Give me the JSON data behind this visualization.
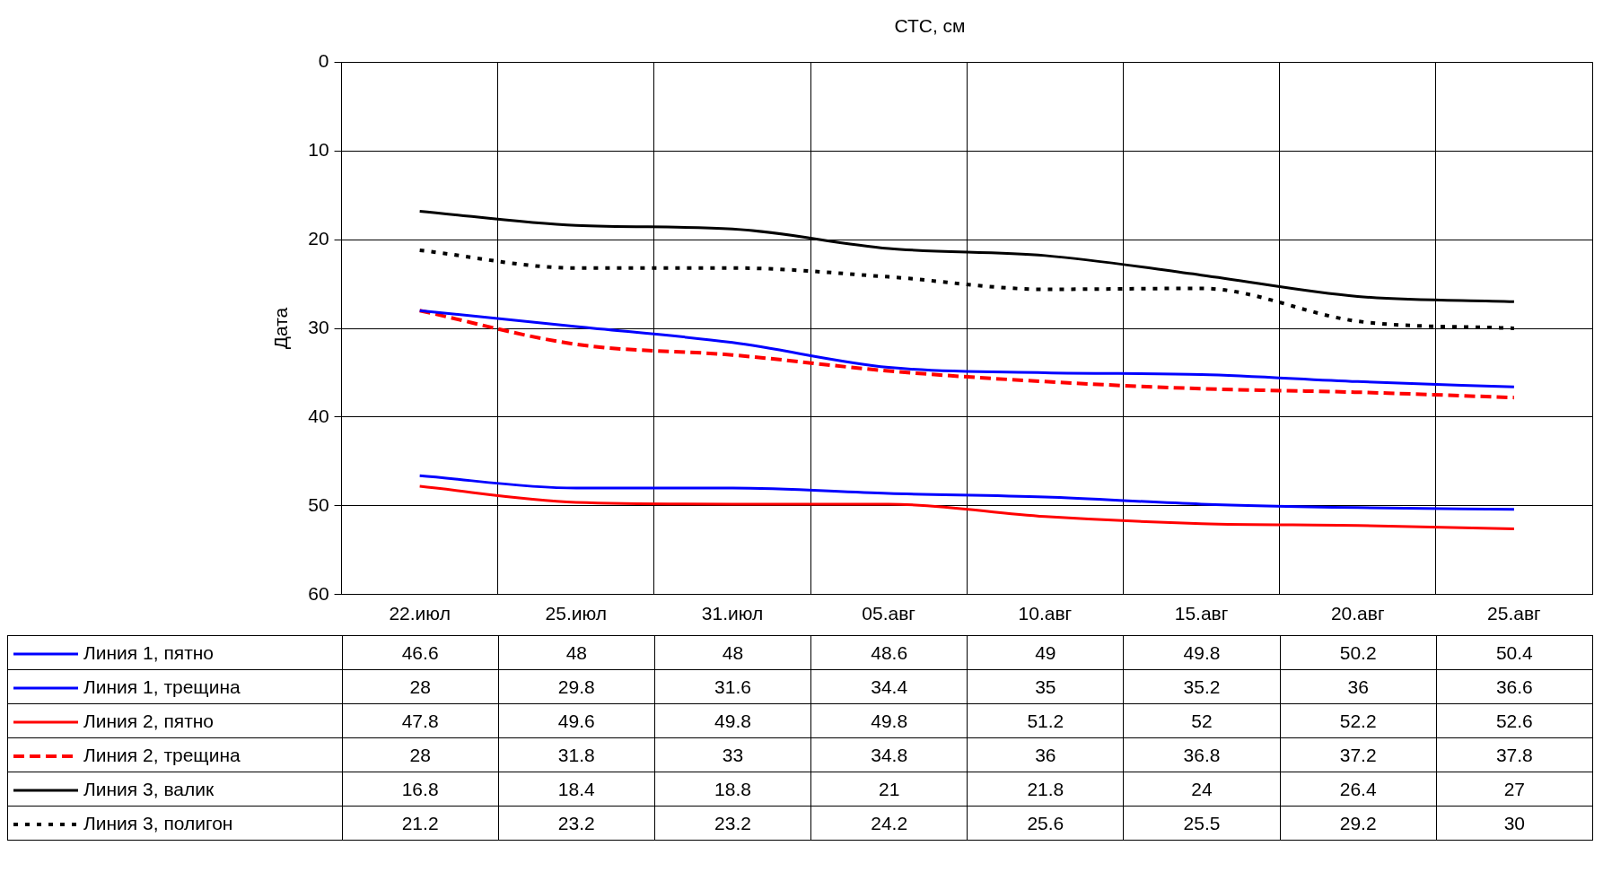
{
  "chart_data": {
    "type": "line",
    "title": "СТС, см",
    "ylabel": "Дата",
    "categories": [
      "22.июл",
      "25.июл",
      "31.июл",
      "05.авг",
      "10.авг",
      "15.авг",
      "20.авг",
      "25.авг"
    ],
    "series": [
      {
        "name": "Линия 1, пятно",
        "color": "#0000ff",
        "values": [
          46.6,
          48,
          48,
          48.6,
          49,
          49.8,
          50.2,
          50.4
        ]
      },
      {
        "name": "Линия 1, трещина",
        "color": "#0000ff",
        "values": [
          28,
          29.8,
          31.6,
          34.4,
          35,
          35.2,
          36,
          36.6
        ]
      },
      {
        "name": "Линия 2, пятно",
        "color": "#ff0000",
        "values": [
          47.8,
          49.6,
          49.8,
          49.8,
          51.2,
          52,
          52.2,
          52.6
        ]
      },
      {
        "name": "Линия 2, трещина",
        "color": "#ff0000",
        "line_style": "dashed",
        "values": [
          28,
          31.8,
          33,
          34.8,
          36,
          36.8,
          37.2,
          37.8
        ]
      },
      {
        "name": "Линия 3, валик",
        "color": "#000000",
        "values": [
          16.8,
          18.4,
          18.8,
          21,
          21.8,
          24,
          26.4,
          27
        ]
      },
      {
        "name": "Линия 3, полигон",
        "color": "#000000",
        "line_style": "dotted",
        "values": [
          21.2,
          23.2,
          23.2,
          24.2,
          25.6,
          25.5,
          29.2,
          30
        ]
      }
    ],
    "ylim": [
      60,
      0
    ],
    "yticks": [
      0,
      10,
      20,
      30,
      40,
      50,
      60
    ],
    "grid": true,
    "legend": "bottom",
    "data_labels": true,
    "marker": "none",
    "line_style": "solid"
  }
}
